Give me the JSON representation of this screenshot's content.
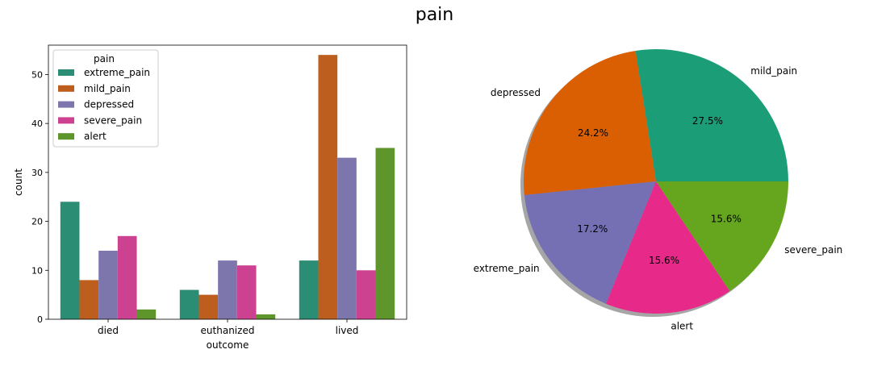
{
  "figure_title": "pain",
  "chart_data": [
    {
      "type": "bar",
      "categories": [
        "died",
        "euthanized",
        "lived"
      ],
      "xlabel": "outcome",
      "ylabel": "count",
      "ylim": [
        0,
        56
      ],
      "yticks": [
        "0",
        "10",
        "20",
        "30",
        "40",
        "50"
      ],
      "legend": {
        "title": "pain",
        "placement": "top-left"
      },
      "grid": false,
      "series": [
        {
          "name": "extreme_pain",
          "color": "#2b8e74",
          "values": [
            24,
            6,
            12
          ]
        },
        {
          "name": "mild_pain",
          "color": "#bd5e1f",
          "values": [
            8,
            5,
            54
          ]
        },
        {
          "name": "depressed",
          "color": "#7d76ad",
          "values": [
            14,
            12,
            33
          ]
        },
        {
          "name": "severe_pain",
          "color": "#cd4290",
          "values": [
            17,
            11,
            10
          ]
        },
        {
          "name": "alert",
          "color": "#5f962b",
          "values": [
            2,
            1,
            35
          ]
        }
      ]
    },
    {
      "type": "pie",
      "slices": [
        {
          "label": "mild_pain",
          "pct_label": "27.5%",
          "value": 27.5,
          "color": "#1b9e77"
        },
        {
          "label": "depressed",
          "pct_label": "24.2%",
          "value": 24.2,
          "color": "#d95f02"
        },
        {
          "label": "extreme_pain",
          "pct_label": "17.2%",
          "value": 17.2,
          "color": "#7570b3"
        },
        {
          "label": "alert",
          "pct_label": "15.6%",
          "value": 15.6,
          "color": "#e7298a"
        },
        {
          "label": "severe_pain",
          "pct_label": "15.6%",
          "value": 15.6,
          "color": "#66a61e"
        }
      ],
      "shadow": true
    }
  ]
}
